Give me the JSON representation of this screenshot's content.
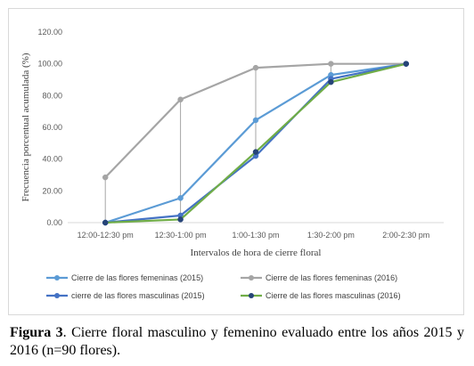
{
  "chart_data": {
    "type": "line",
    "title": "",
    "xlabel": "Intervalos de hora de cierre floral",
    "ylabel": "Frecuencia porcentual acumulada (%)",
    "ylim": [
      0,
      120
    ],
    "y_ticks": [
      "0.00",
      "20.00",
      "40.00",
      "60.00",
      "80.00",
      "100.00",
      "120.00"
    ],
    "categories": [
      "12:00-12:30 pm",
      "12:30-1:00 pm",
      "1:00-1:30 pm",
      "1:30-2:00 pm",
      "2:00-2:30 pm"
    ],
    "grid": false,
    "drop_lines": true,
    "legend_position": "bottom",
    "series": [
      {
        "name": "Cierre de las flores femeninas (2015)",
        "color": "#5b9bd5",
        "values": [
          0,
          15.5,
          64.5,
          93,
          100
        ]
      },
      {
        "name": "Cierre de las flores femeninas (2016)",
        "color": "#a5a5a5",
        "values": [
          28.5,
          77.5,
          97.5,
          100,
          100
        ]
      },
      {
        "name": "cierre de las flores masculinas (2015)",
        "color": "#4472c4",
        "values": [
          0,
          4.5,
          42,
          90.5,
          100
        ]
      },
      {
        "name": "Cierre de las flores masculinas (2016)",
        "color": "#70ad47",
        "marker_color": "#264478",
        "values": [
          0,
          2,
          44.5,
          88.5,
          100
        ]
      }
    ]
  },
  "caption": {
    "label": "Figura 3",
    "text": ". Cierre floral masculino y femenino evaluado entre los años 2015 y 2016 (n=90 flores)."
  }
}
